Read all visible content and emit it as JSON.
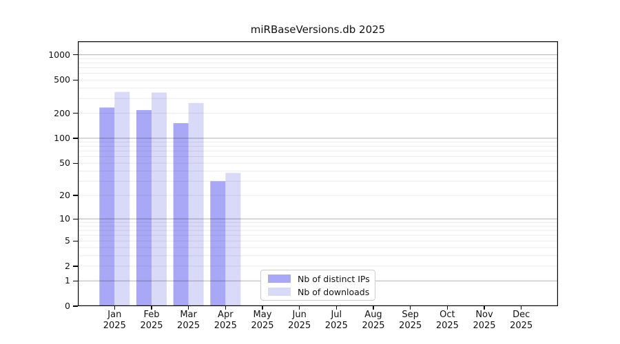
{
  "figure_title": "miRBaseVersions.db 2025",
  "chart_data": {
    "type": "bar",
    "title": "miRBaseVersions.db 2025",
    "categories": [
      "Jan 2025",
      "Feb 2025",
      "Mar 2025",
      "Apr 2025",
      "May 2025",
      "Jun 2025",
      "Jul 2025",
      "Aug 2025",
      "Sep 2025",
      "Oct 2025",
      "Nov 2025",
      "Dec 2025"
    ],
    "series": [
      {
        "name": "Nb of distinct IPs",
        "color": "#a8a8f6",
        "values": [
          234,
          218,
          152,
          30,
          0,
          0,
          0,
          0,
          0,
          0,
          0,
          0
        ]
      },
      {
        "name": "Nb of downloads",
        "color": "#d9d9f8",
        "values": [
          360,
          354,
          265,
          38,
          0,
          0,
          0,
          0,
          0,
          0,
          0,
          0
        ]
      }
    ],
    "y_axis": {
      "scale": "log10(1+v)",
      "ticks": [
        0,
        1,
        2,
        5,
        10,
        20,
        50,
        100,
        200,
        500,
        1000
      ],
      "tick_labels": [
        "0",
        "1",
        "2",
        "5",
        "10",
        "20",
        "50",
        "100",
        "200",
        "500",
        "1000"
      ],
      "ylim": [
        0,
        1450
      ]
    },
    "gridlines": {
      "major": [
        1,
        10,
        100,
        1000
      ],
      "minor": [
        2,
        3,
        4,
        5,
        6,
        7,
        8,
        9,
        20,
        30,
        40,
        50,
        60,
        70,
        80,
        90,
        200,
        300,
        400,
        500,
        600,
        700,
        800,
        900
      ],
      "major_color": "rgba(0,0,0,0.28)",
      "minor_color": "rgba(0,0,0,0.08)"
    },
    "legend": {
      "position": "lower center",
      "items": [
        "Nb of distinct IPs",
        "Nb of downloads"
      ]
    },
    "axis_color": "#000000",
    "background_color": "#ffffff"
  }
}
